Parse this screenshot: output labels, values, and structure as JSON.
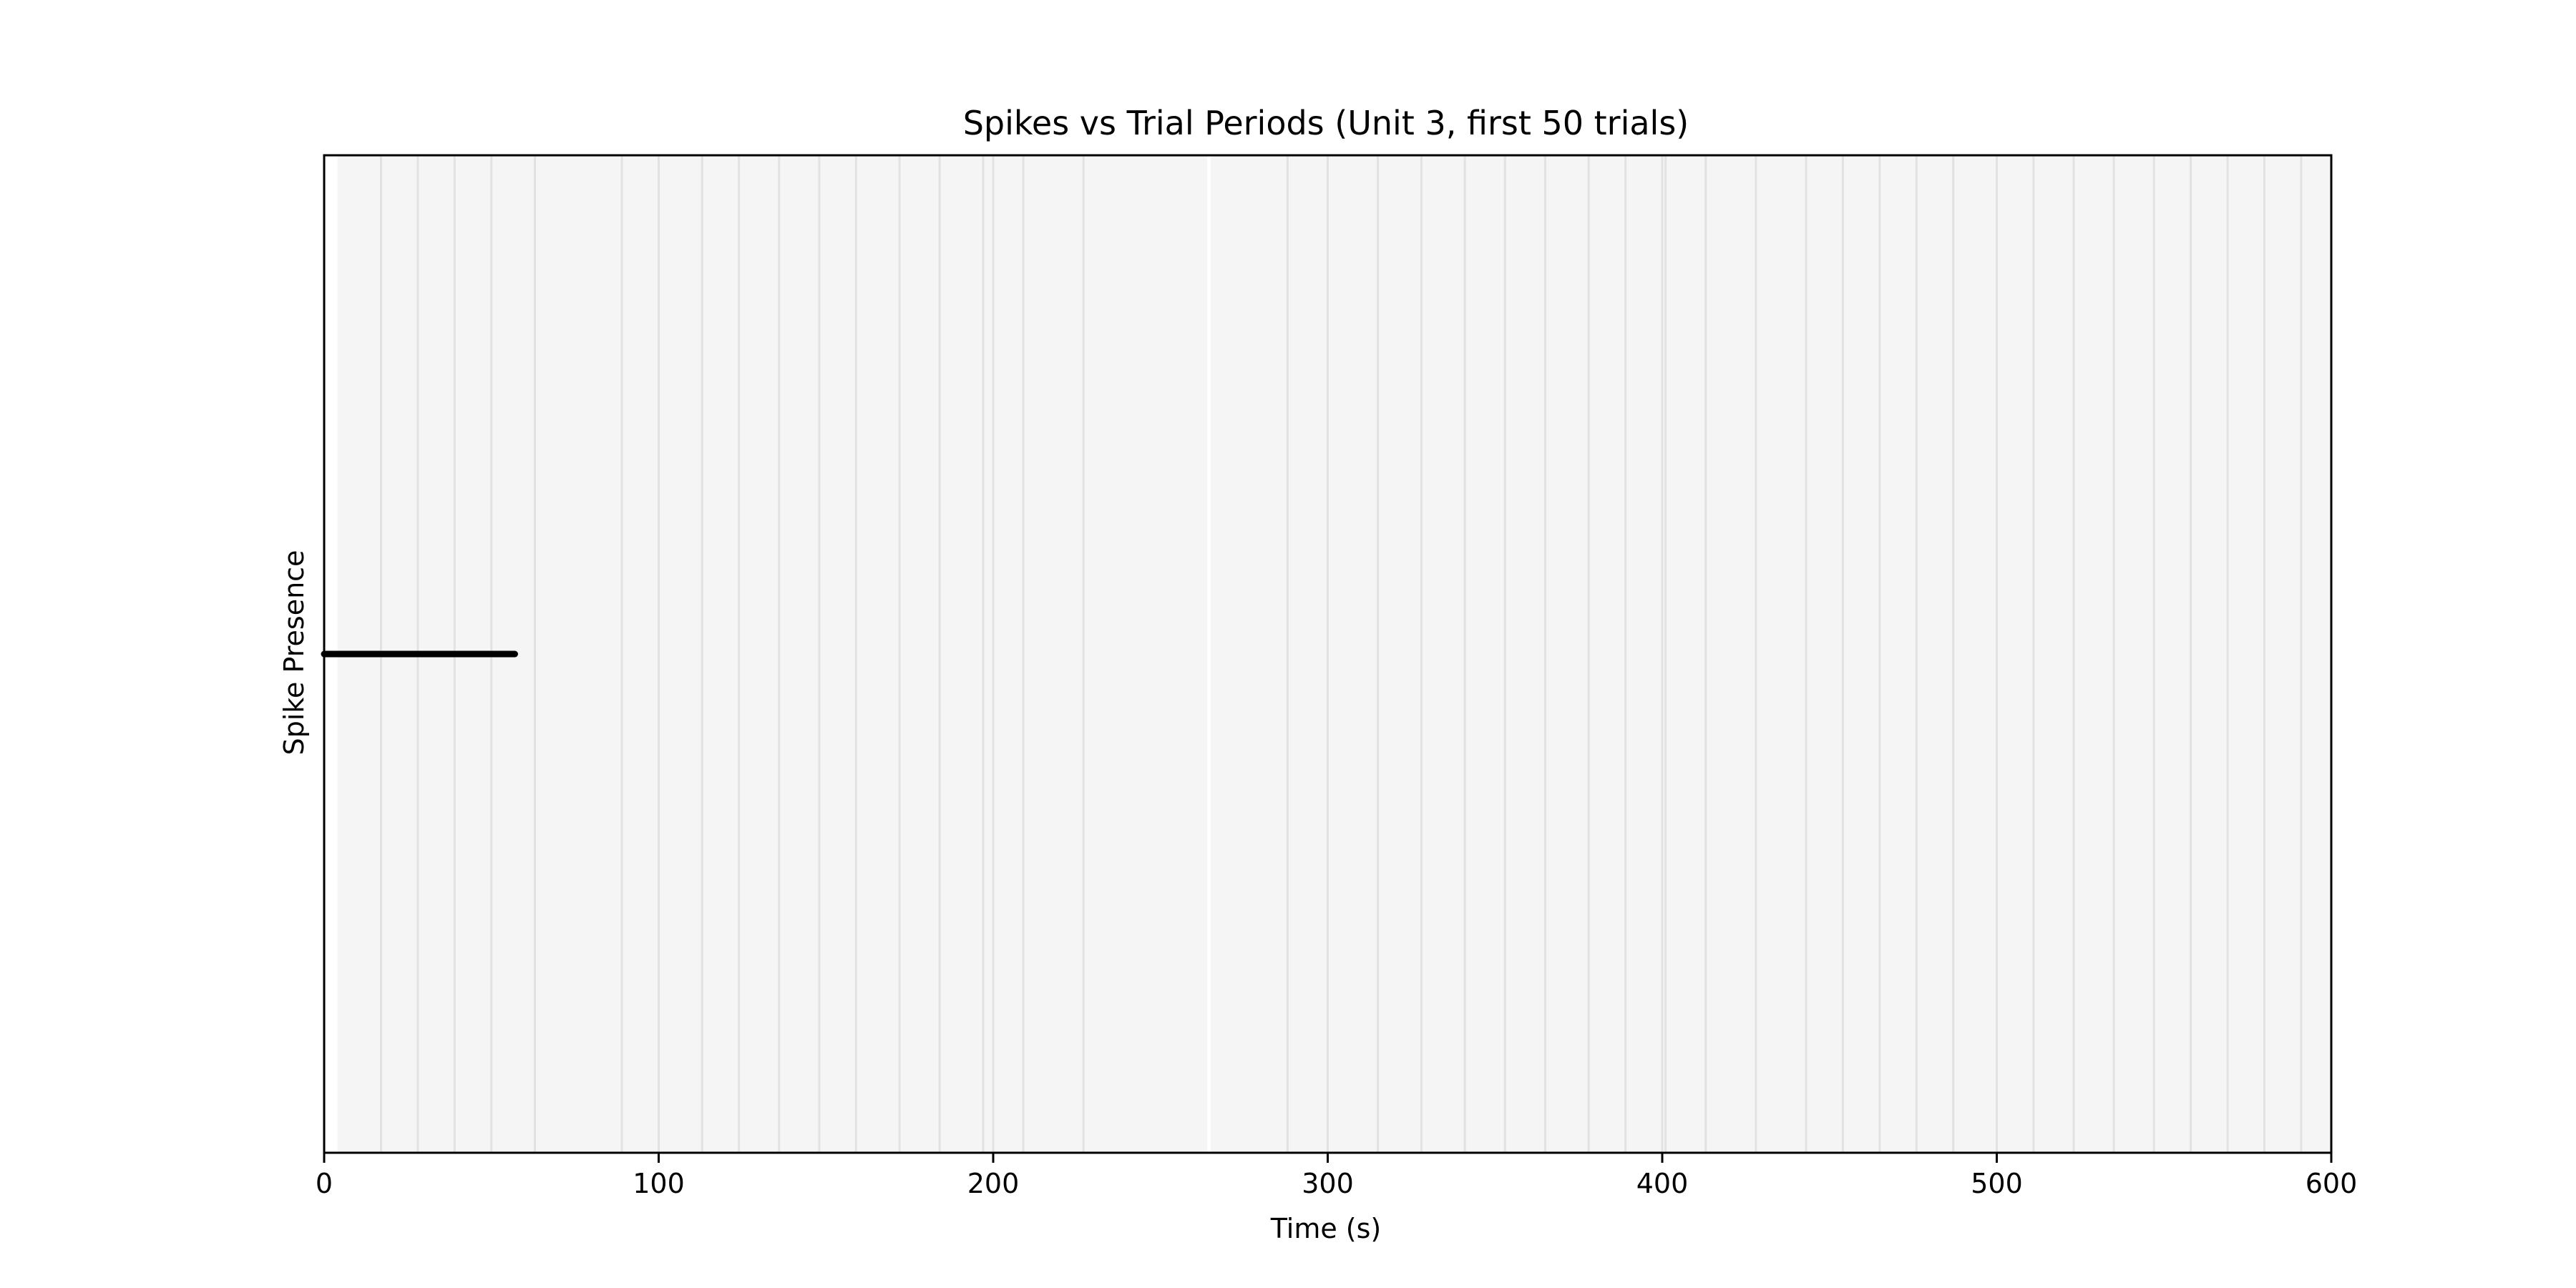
{
  "chart_data": {
    "type": "line",
    "title": "Spikes vs Trial Periods (Unit 3, first 50 trials)",
    "xlabel": "Time (s)",
    "ylabel": "Spike Presence",
    "xlim": [
      0,
      600
    ],
    "xticks": [
      0,
      100,
      200,
      300,
      400,
      500,
      600
    ],
    "y_ticks_shown": false,
    "grid": false,
    "legend": "none",
    "background_shading": {
      "color": "#f5f5f5",
      "periods": [
        [
          4,
          264
        ],
        [
          265,
          600
        ]
      ],
      "boundary_lines": [
        17,
        28,
        39,
        50,
        63,
        89,
        100,
        113,
        124,
        136,
        148,
        159,
        172,
        184,
        197,
        200,
        209,
        227,
        288,
        300,
        315,
        328,
        341,
        353,
        365,
        378,
        389,
        400,
        401,
        413,
        428,
        443,
        454,
        465,
        476,
        487,
        500,
        511,
        523,
        535,
        547,
        558,
        569,
        580,
        591
      ],
      "boundary_color": "#e2e2e2"
    },
    "series": [
      {
        "color": "#000000",
        "points": [
          [
            0,
            0
          ],
          [
            57,
            0
          ]
        ]
      }
    ],
    "colors": {
      "axes_frame": "#000000",
      "plot_background": "#ffffff"
    }
  }
}
